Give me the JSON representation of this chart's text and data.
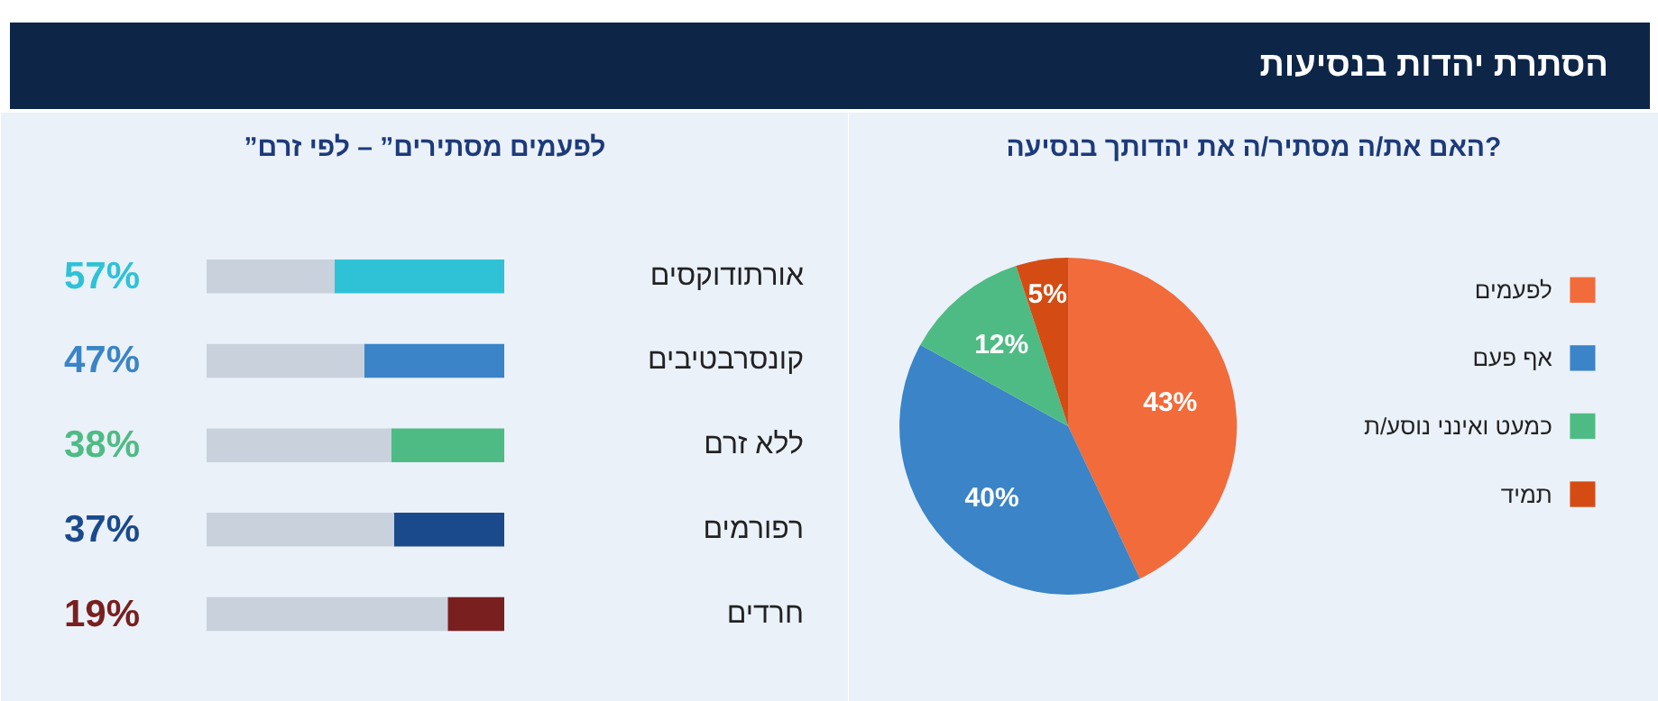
{
  "chart_data": [
    {
      "type": "other",
      "title": "הסתרת יהדות בנסיעות"
    },
    {
      "type": "pie",
      "title": "האם את/ה מסתיר/ה את יהדותך בנסיעה?",
      "categories": [
        "לפעמים",
        "אף פעם",
        "כמעט ואינני נוסע/ת",
        "תמיד"
      ],
      "values": [
        43,
        40,
        12,
        5
      ],
      "colors": [
        "#f26b3a",
        "#3a84c7",
        "#4fbb84",
        "#d44c14"
      ],
      "value_labels": [
        "43%",
        "40%",
        "12%",
        "5%"
      ],
      "legend": "right"
    },
    {
      "type": "bar",
      "orientation": "horizontal",
      "stacked": true,
      "title": "”לפעמים מסתירים” – לפי זרם",
      "categories": [
        "אורתודוקסים",
        "קונסרבטיבים",
        "ללא זרם",
        "רפורמים",
        "חרדים"
      ],
      "series": [
        {
          "colors": [
            "#2fc2d7",
            "#3a84c7",
            "#4fbb84",
            "#1b4a8c",
            "#7a1f1f"
          ],
          "values": [
            57,
            47,
            38,
            37,
            19
          ],
          "value_labels": [
            "57%",
            "47%",
            "38%",
            "37%",
            "19%"
          ]
        },
        {
          "color": "#c8d1dc",
          "values": [
            43,
            53,
            62,
            63,
            81
          ]
        }
      ]
    }
  ]
}
